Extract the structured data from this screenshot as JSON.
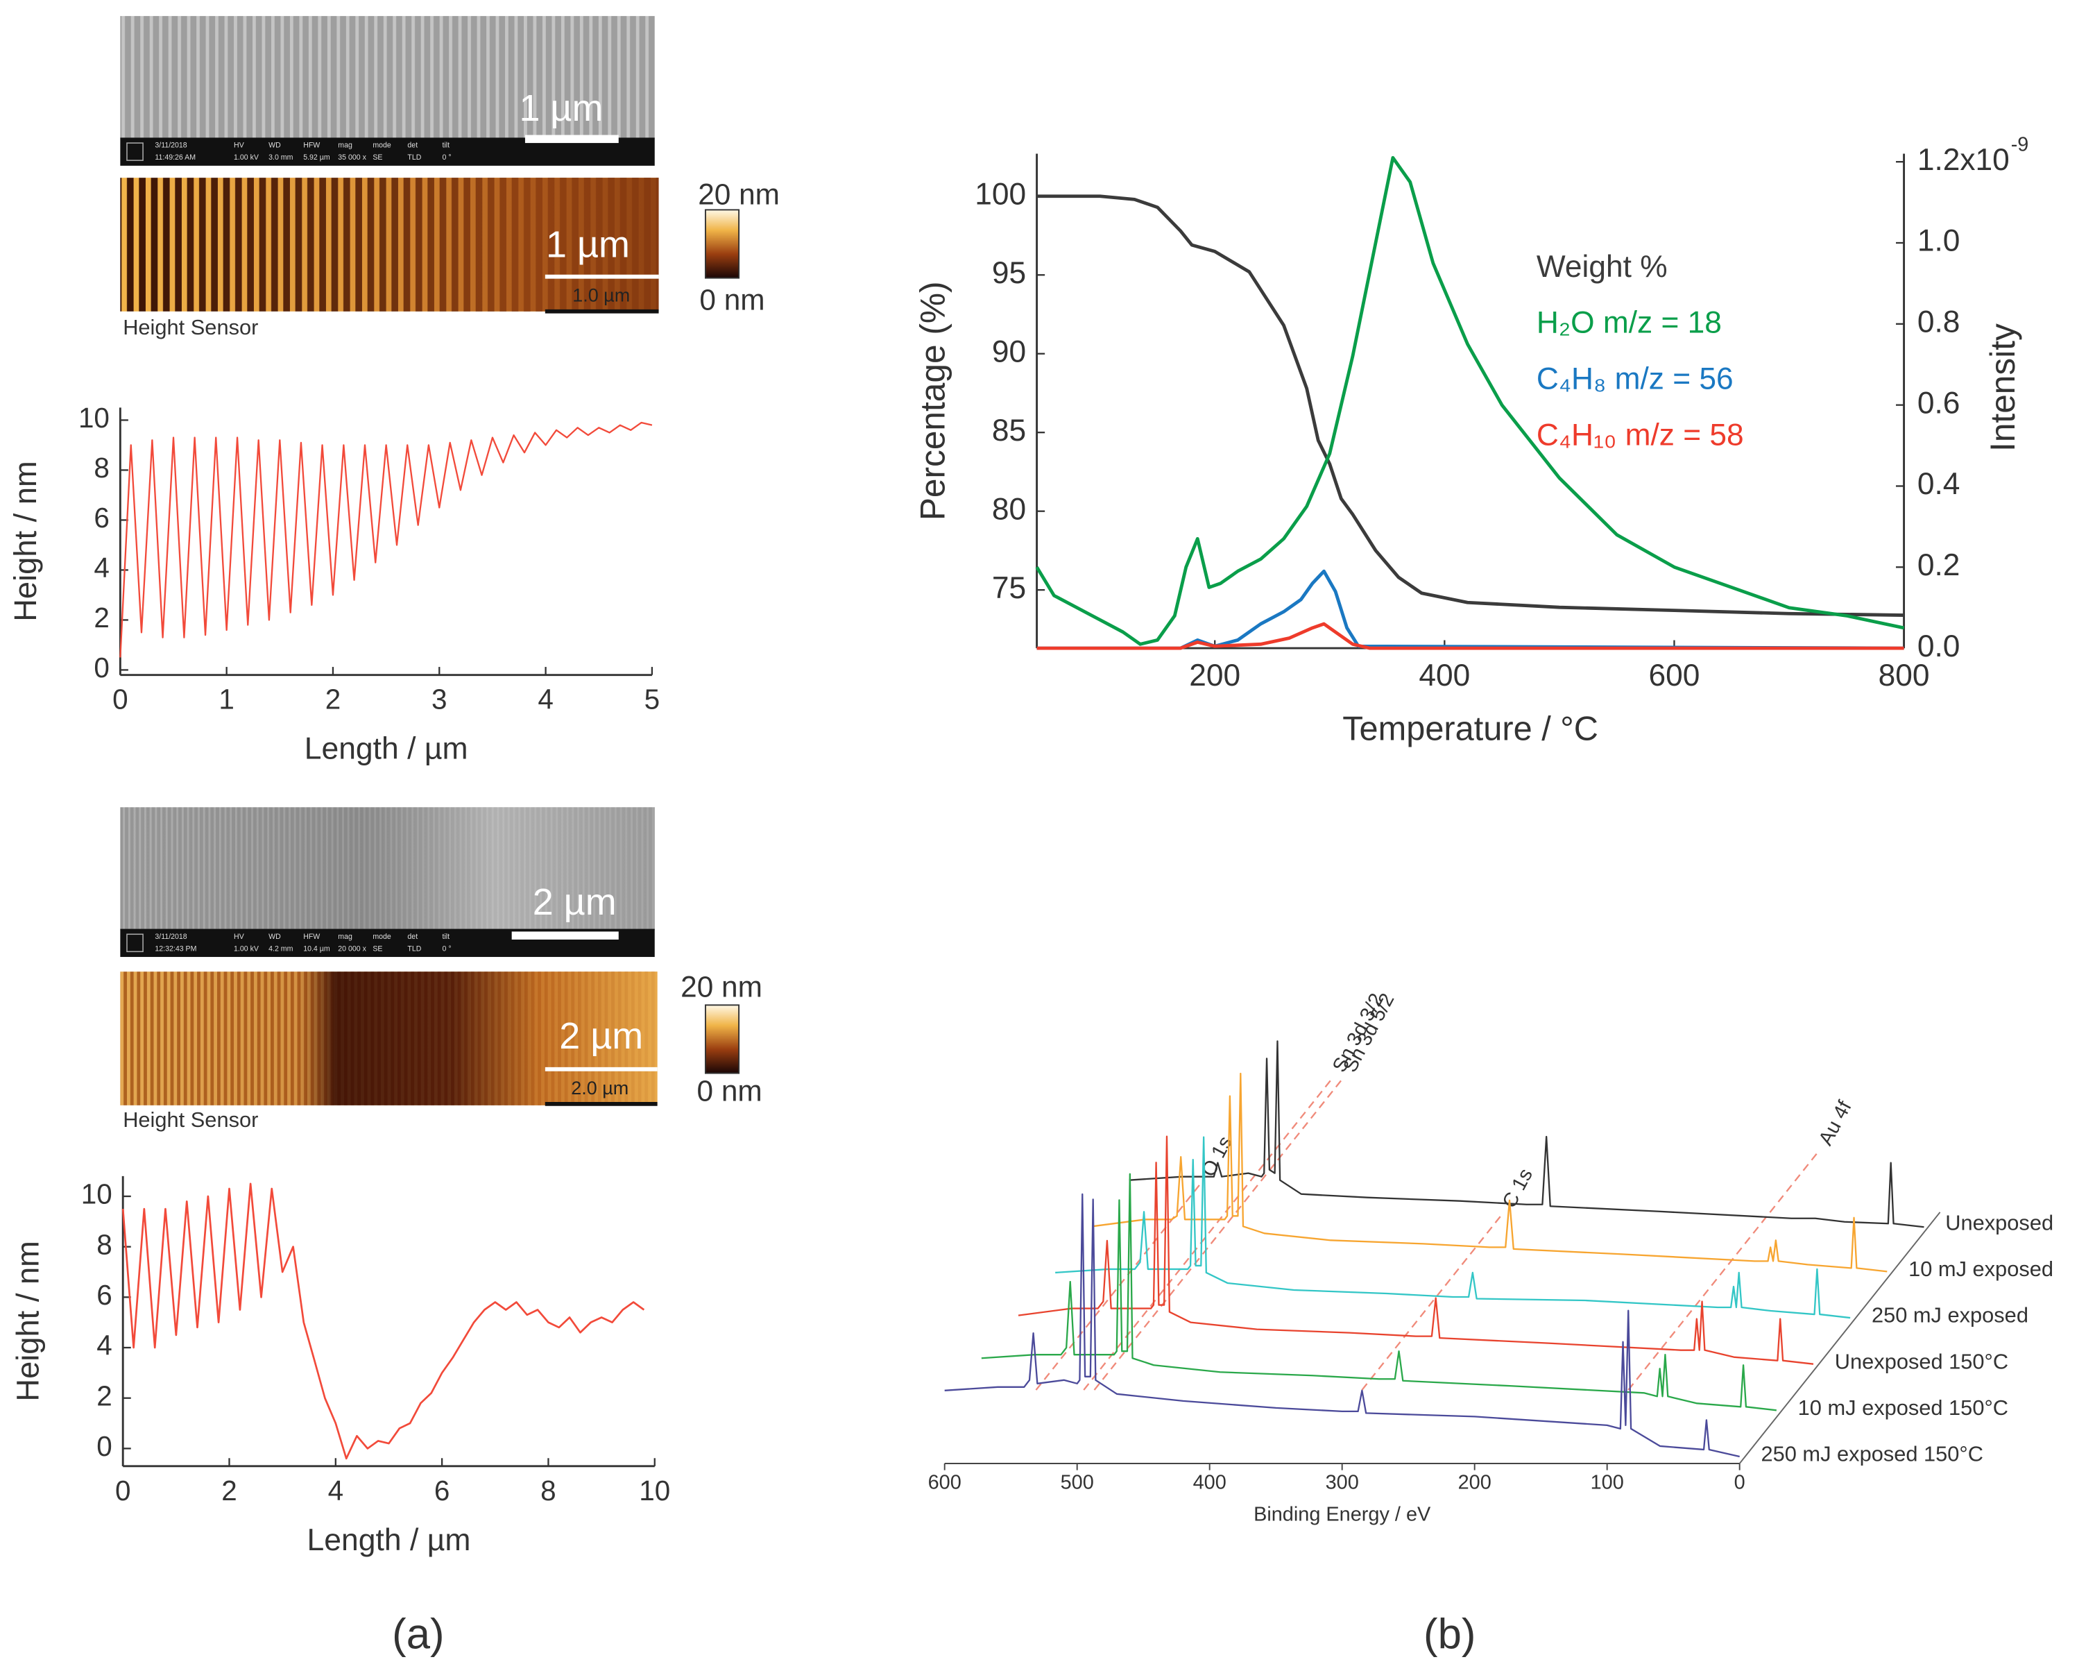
{
  "chart_data": [
    {
      "type": "line",
      "xlabel": "Length / µm",
      "ylabel": "Height / nm",
      "x": [
        0,
        0.1,
        0.2,
        0.3,
        0.4,
        0.5,
        0.6,
        0.7,
        0.8,
        0.9,
        1.0,
        1.1,
        1.2,
        1.3,
        1.4,
        1.5,
        1.6,
        1.7,
        1.8,
        1.9,
        2.0,
        2.1,
        2.2,
        2.3,
        2.4,
        2.5,
        2.6,
        2.7,
        2.8,
        2.9,
        3.0,
        3.1,
        3.2,
        3.3,
        3.4,
        3.5,
        3.6,
        3.7,
        3.8,
        3.9,
        4.0,
        4.1,
        4.2,
        4.3,
        4.4,
        4.5,
        4.6,
        4.7,
        4.8,
        4.9,
        5.0
      ],
      "values": [
        0.5,
        9.0,
        1.5,
        9.2,
        1.3,
        9.3,
        1.3,
        9.3,
        1.4,
        9.3,
        1.6,
        9.3,
        1.8,
        9.2,
        2.0,
        9.2,
        2.3,
        9.1,
        2.6,
        9.0,
        3.0,
        9.0,
        3.6,
        9.0,
        4.3,
        9.0,
        5.0,
        9.0,
        5.8,
        9.0,
        6.5,
        9.1,
        7.2,
        9.2,
        7.8,
        9.3,
        8.3,
        9.4,
        8.7,
        9.5,
        9.0,
        9.6,
        9.3,
        9.7,
        9.4,
        9.7,
        9.5,
        9.8,
        9.6,
        9.9,
        9.8
      ],
      "color": "#f24a3a",
      "xlim": [
        0,
        5
      ],
      "ylim": [
        -0.2,
        10.5
      ],
      "xticks": [
        0,
        1,
        2,
        3,
        4,
        5
      ],
      "yticks": [
        0,
        2,
        4,
        6,
        8,
        10
      ]
    },
    {
      "type": "line",
      "xlabel": "Length / µm",
      "ylabel": "Height / nm",
      "x": [
        0,
        0.2,
        0.4,
        0.6,
        0.8,
        1.0,
        1.2,
        1.4,
        1.6,
        1.8,
        2.0,
        2.2,
        2.4,
        2.6,
        2.8,
        3.0,
        3.2,
        3.4,
        3.6,
        3.8,
        4.0,
        4.2,
        4.4,
        4.6,
        4.8,
        5.0,
        5.2,
        5.4,
        5.6,
        5.8,
        6.0,
        6.2,
        6.4,
        6.6,
        6.8,
        7.0,
        7.2,
        7.4,
        7.6,
        7.8,
        8.0,
        8.2,
        8.4,
        8.6,
        8.8,
        9.0,
        9.2,
        9.4,
        9.6,
        9.8
      ],
      "values": [
        9.5,
        4,
        9.5,
        4,
        9.5,
        4.5,
        9.8,
        4.8,
        10,
        5,
        10.3,
        5.5,
        10.5,
        6,
        10.3,
        7,
        8,
        5,
        3.5,
        2,
        1,
        -0.4,
        0.5,
        0,
        0.3,
        0.2,
        0.8,
        1,
        1.8,
        2.2,
        3,
        3.6,
        4.3,
        5,
        5.5,
        5.8,
        5.5,
        5.8,
        5.3,
        5.5,
        5,
        4.8,
        5.2,
        4.6,
        5,
        5.2,
        5,
        5.5,
        5.8,
        5.5
      ],
      "color": "#f24a3a",
      "xlim": [
        0,
        10
      ],
      "ylim": [
        -0.7,
        10.8
      ],
      "xticks": [
        0,
        2,
        4,
        6,
        8,
        10
      ],
      "yticks": [
        0,
        2,
        4,
        6,
        8,
        10
      ]
    },
    {
      "type": "line",
      "xlabel": "Temperature / °C",
      "ylabel": "Percentage (%)",
      "y2label": "Intensity",
      "y2_exponent": "-9",
      "xlim": [
        45,
        800
      ],
      "ylim": [
        71.3,
        102.7
      ],
      "y2lim": [
        0,
        1.22
      ],
      "xticks": [
        200,
        400,
        600,
        800
      ],
      "yticks": [
        75,
        80,
        85,
        90,
        95,
        100
      ],
      "y2ticks": [
        {
          "value": 0,
          "label": "0.0"
        },
        {
          "value": 0.2,
          "label": "0.2"
        },
        {
          "value": 0.4,
          "label": "0.4"
        },
        {
          "value": 0.6,
          "label": "0.6"
        },
        {
          "value": 0.8,
          "label": "0.8"
        },
        {
          "value": 1,
          "label": "1.0"
        },
        {
          "value": 1.2,
          "label": "1.2x10"
        }
      ],
      "series": [
        {
          "name": "Weight %",
          "color": "#3b3b3b",
          "axis": "y",
          "x": [
            45,
            100,
            130,
            150,
            170,
            180,
            200,
            230,
            260,
            280,
            290,
            300,
            310,
            320,
            340,
            360,
            380,
            420,
            500,
            600,
            700,
            800
          ],
          "values": [
            100,
            100,
            99.8,
            99.3,
            97.8,
            96.9,
            96.5,
            95.2,
            91.8,
            87.8,
            84.5,
            83,
            80.8,
            79.8,
            77.5,
            75.8,
            74.8,
            74.2,
            73.9,
            73.7,
            73.5,
            73.4
          ]
        },
        {
          "name": "H₂O m/z = 18",
          "color": "#0a9e4a",
          "axis": "y2",
          "x": [
            45,
            60,
            80,
            100,
            120,
            135,
            150,
            165,
            175,
            185,
            195,
            205,
            220,
            240,
            260,
            280,
            300,
            320,
            340,
            355,
            370,
            390,
            420,
            450,
            500,
            550,
            600,
            650,
            700,
            750,
            800
          ],
          "values": [
            0.2,
            0.13,
            0.1,
            0.07,
            0.04,
            0.01,
            0.02,
            0.08,
            0.2,
            0.27,
            0.15,
            0.16,
            0.19,
            0.22,
            0.27,
            0.35,
            0.48,
            0.72,
            1.0,
            1.21,
            1.15,
            0.95,
            0.75,
            0.6,
            0.42,
            0.28,
            0.2,
            0.15,
            0.1,
            0.08,
            0.05
          ]
        },
        {
          "name": "C₄H₈ m/z = 56",
          "color": "#1a78c2",
          "axis": "y2",
          "x": [
            45,
            170,
            185,
            200,
            220,
            240,
            260,
            275,
            285,
            295,
            305,
            315,
            325,
            800
          ],
          "values": [
            0,
            0,
            0.02,
            0.005,
            0.02,
            0.06,
            0.09,
            0.12,
            0.16,
            0.19,
            0.14,
            0.05,
            0.005,
            0
          ]
        },
        {
          "name": "C₄H₁₀ m/z = 58",
          "color": "#ee3b2b",
          "axis": "y2",
          "x": [
            45,
            170,
            185,
            200,
            240,
            265,
            285,
            295,
            305,
            320,
            335,
            800
          ],
          "values": [
            0,
            0,
            0.015,
            0.005,
            0.01,
            0.025,
            0.05,
            0.06,
            0.04,
            0.01,
            0,
            0
          ]
        }
      ]
    },
    {
      "type": "waterfall",
      "xlabel": "Binding Energy / eV",
      "xlim": [
        600,
        0
      ],
      "xticks": [
        600,
        500,
        400,
        300,
        200,
        100,
        0
      ],
      "x": [
        600,
        560,
        540,
        536,
        533,
        530,
        510,
        500,
        498,
        496,
        494,
        490,
        488,
        486,
        470,
        420,
        350,
        300,
        288,
        285,
        282,
        200,
        100,
        90,
        88,
        86,
        84,
        82,
        60,
        27,
        25,
        23,
        0
      ],
      "series": [
        {
          "name": "Unexposed",
          "color": "#333333",
          "values": [
            30,
            32,
            32,
            32,
            40,
            32,
            34,
            32,
            34,
            100,
            36,
            34,
            110,
            30,
            22,
            20,
            18,
            16,
            16,
            55,
            15,
            12,
            8,
            8,
            8,
            8,
            8,
            8,
            6,
            5,
            40,
            5,
            3
          ]
        },
        {
          "name": "10 mJ exposed",
          "color": "#f7a530",
          "values": [
            30,
            34,
            34,
            36,
            70,
            34,
            34,
            34,
            36,
            105,
            36,
            36,
            118,
            30,
            26,
            22,
            20,
            18,
            18,
            45,
            17,
            14,
            10,
            10,
            18,
            10,
            22,
            10,
            8,
            6,
            35,
            6,
            4
          ]
        },
        {
          "name": "250 mJ exposed",
          "color": "#33c6c6",
          "values": [
            30,
            32,
            32,
            36,
            65,
            32,
            32,
            32,
            34,
            95,
            34,
            34,
            108,
            30,
            24,
            20,
            18,
            16,
            16,
            30,
            15,
            14,
            10,
            10,
            22,
            10,
            30,
            10,
            8,
            6,
            32,
            6,
            4
          ]
        },
        {
          "name": "Unexposed 150°C",
          "color": "#e8432e",
          "values": [
            32,
            36,
            36,
            40,
            75,
            36,
            36,
            36,
            38,
            120,
            38,
            38,
            135,
            34,
            28,
            24,
            22,
            20,
            20,
            42,
            19,
            16,
            12,
            12,
            30,
            12,
            40,
            12,
            8,
            6,
            30,
            6,
            4
          ]
        },
        {
          "name": "10 mJ exposed 150°C",
          "color": "#2aa84a",
          "values": [
            34,
            36,
            36,
            40,
            78,
            36,
            36,
            36,
            38,
            125,
            38,
            38,
            140,
            34,
            30,
            26,
            24,
            22,
            22,
            38,
            21,
            18,
            14,
            12,
            28,
            12,
            36,
            12,
            8,
            6,
            30,
            6,
            4
          ]
        },
        {
          "name": "250 mJ exposed 150°C",
          "color": "#4b4a9a",
          "values": [
            42,
            44,
            44,
            48,
            75,
            46,
            48,
            46,
            48,
            155,
            50,
            50,
            152,
            48,
            40,
            36,
            32,
            30,
            30,
            42,
            29,
            27,
            22,
            20,
            70,
            22,
            88,
            20,
            10,
            8,
            25,
            8,
            4
          ]
        }
      ],
      "annotations": [
        {
          "label": "Sn 3d 5/2",
          "x": 487
        },
        {
          "label": "Sn 3d 3/2",
          "x": 495
        },
        {
          "label": "O 1s",
          "x": 531
        },
        {
          "label": "C 1s",
          "x": 285
        },
        {
          "label": "Au 4f",
          "x": 84
        }
      ]
    }
  ],
  "images": [
    {
      "sem": {
        "scale_label": "1 µm",
        "info": [
          "3/11/2018",
          "11:49:26 AM",
          "HV",
          "1.00 kV",
          "WD",
          "3.0 mm",
          "HFW",
          "5.92 µm",
          "mag",
          "35 000 x",
          "mode",
          "SE",
          "det",
          "TLD",
          "tilt",
          "0 °"
        ]
      },
      "afm": {
        "scale_label": "1 µm",
        "inner_scale_label": "1.0 µm",
        "caption": "Height Sensor",
        "colorbar_max": "20 nm",
        "colorbar_min": "0 nm"
      }
    },
    {
      "sem": {
        "scale_label": "2 µm",
        "info": [
          "3/11/2018",
          "12:32:43 PM",
          "HV",
          "1.00 kV",
          "WD",
          "4.2 mm",
          "HFW",
          "10.4 µm",
          "mag",
          "20 000 x",
          "mode",
          "SE",
          "det",
          "TLD",
          "tilt",
          "0 °"
        ]
      },
      "afm": {
        "scale_label": "2 µm",
        "inner_scale_label": "2.0 µm",
        "caption": "Height Sensor",
        "colorbar_max": "20 nm",
        "colorbar_min": "0 nm"
      }
    }
  ],
  "panel_labels": [
    "(a)",
    "(b)"
  ]
}
